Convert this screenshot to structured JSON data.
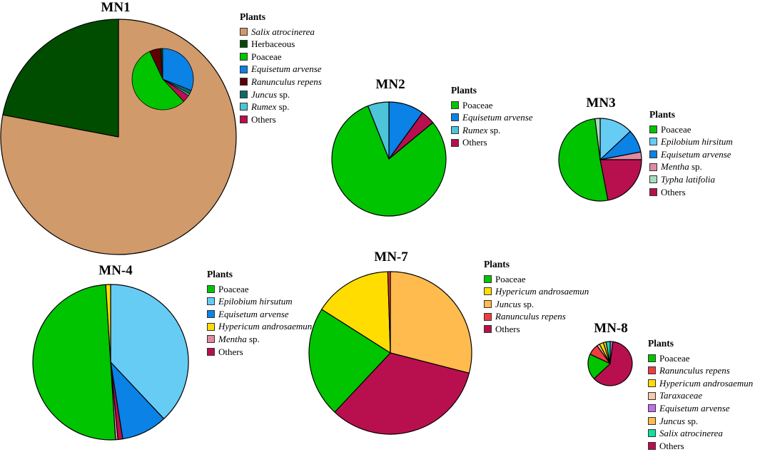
{
  "colors": {
    "Salix atrocinerea": "#d19a6a",
    "Herbaceous": "#004d00",
    "Poaceae": "#00c400",
    "Equisetum arvense": "#0a82e6",
    "Ranunculus repens": "#5c0000",
    "Juncus sp.": "#0f6a66",
    "Rumex sp.": "#4dc4d8",
    "Others": "#b8104e",
    "Epilobium hirsitum": "#66ccf4",
    "Epilobium hirsutum": "#66ccf4",
    "Mentha sp.": "#e08aa2",
    "Typha latifolia": "#a8dcc0",
    "Hypericum androsaemun": "#ffdd00",
    "Juncus sp. (MN-7)": "#ffbb4d",
    "Ranunculus repens (MN-7)": "#f03c40",
    "Taraxaceae": "#f8c8a8",
    "Equisetum arvense (MN-8)": "#c070e8",
    "Salix atrocinerea (MN-8)": "#10e0a0"
  },
  "chart_data": [
    {
      "type": "pie",
      "title": "MN1",
      "legend_title": "Plants",
      "legend_placement": "right",
      "slices": [
        {
          "label": "Salix atrocinerea",
          "italic": true,
          "value": 78,
          "color_key": "Salix atrocinerea"
        },
        {
          "label": "Herbaceous",
          "italic": false,
          "value": 22,
          "color_key": "Herbaceous"
        }
      ],
      "inset": {
        "breakdown_of": "Herbaceous",
        "slices": [
          {
            "label": "Equisetum arvense",
            "value": 31,
            "color_key": "Equisetum arvense"
          },
          {
            "label": "Juncus sp.",
            "value": 2,
            "color_key": "Juncus sp."
          },
          {
            "label": "Rumex sp.",
            "value": 1,
            "color_key": "Rumex sp."
          },
          {
            "label": "Others",
            "value": 4,
            "color_key": "Others"
          },
          {
            "label": "Poaceae",
            "value": 55,
            "color_key": "Poaceae"
          },
          {
            "label": "Ranunculus repens",
            "value": 6,
            "color_key": "Ranunculus repens"
          },
          {
            "label": "Herbaceous",
            "value": 1,
            "color_key": "Herbaceous"
          }
        ]
      },
      "legend": [
        {
          "label": "Salix atrocinerea",
          "italic": true,
          "suffix": "",
          "color_key": "Salix atrocinerea"
        },
        {
          "label": "Herbaceous",
          "italic": false,
          "suffix": "",
          "color_key": "Herbaceous"
        },
        {
          "label": "Poaceae",
          "italic": false,
          "suffix": "",
          "color_key": "Poaceae"
        },
        {
          "label": "Equisetum arvense",
          "italic": true,
          "suffix": "",
          "color_key": "Equisetum arvense"
        },
        {
          "label": "Ranunculus repens",
          "italic": true,
          "suffix": "",
          "color_key": "Ranunculus repens"
        },
        {
          "label": "Juncus",
          "italic": true,
          "suffix": " sp.",
          "color_key": "Juncus sp."
        },
        {
          "label": "Rumex",
          "italic": true,
          "suffix": " sp.",
          "color_key": "Rumex sp."
        },
        {
          "label": "Others",
          "italic": false,
          "suffix": "",
          "color_key": "Others"
        }
      ]
    },
    {
      "type": "pie",
      "title": "MN2",
      "legend_title": "Plants",
      "legend_placement": "right",
      "slices": [
        {
          "label": "Equisetum arvense",
          "value": 10,
          "color_key": "Equisetum arvense"
        },
        {
          "label": "Others",
          "value": 4,
          "color_key": "Others"
        },
        {
          "label": "Poaceae",
          "value": 80,
          "color_key": "Poaceae"
        },
        {
          "label": "Rumex sp.",
          "value": 6,
          "color_key": "Rumex sp."
        }
      ],
      "legend": [
        {
          "label": "Poaceae",
          "italic": false,
          "suffix": "",
          "color_key": "Poaceae"
        },
        {
          "label": "Equisetum arvense",
          "italic": true,
          "suffix": "",
          "color_key": "Equisetum arvense"
        },
        {
          "label": "Rumex",
          "italic": true,
          "suffix": " sp.",
          "color_key": "Rumex sp."
        },
        {
          "label": "Others",
          "italic": false,
          "suffix": "",
          "color_key": "Others"
        }
      ]
    },
    {
      "type": "pie",
      "title": "MN3",
      "legend_title": "Plants",
      "legend_placement": "right",
      "slices": [
        {
          "label": "Epilobium hirsitum",
          "value": 13,
          "color_key": "Epilobium hirsitum"
        },
        {
          "label": "Equisetum arvense",
          "value": 9,
          "color_key": "Equisetum arvense"
        },
        {
          "label": "Mentha sp.",
          "value": 3,
          "color_key": "Mentha sp."
        },
        {
          "label": "Others",
          "value": 22,
          "color_key": "Others"
        },
        {
          "label": "Poaceae",
          "value": 51,
          "color_key": "Poaceae"
        },
        {
          "label": "Typha latifolia",
          "value": 2,
          "color_key": "Typha latifolia"
        }
      ],
      "legend": [
        {
          "label": "Poaceae",
          "italic": false,
          "suffix": "",
          "color_key": "Poaceae"
        },
        {
          "label": "Epilobium hirsitum",
          "italic": true,
          "suffix": "",
          "color_key": "Epilobium hirsitum"
        },
        {
          "label": "Equisetum arvense",
          "italic": true,
          "suffix": "",
          "color_key": "Equisetum arvense"
        },
        {
          "label": "Mentha",
          "italic": true,
          "suffix": " sp.",
          "color_key": "Mentha sp."
        },
        {
          "label": "Typha latifolia",
          "italic": true,
          "suffix": "",
          "color_key": "Typha latifolia"
        },
        {
          "label": "Others",
          "italic": false,
          "suffix": "",
          "color_key": "Others"
        }
      ]
    },
    {
      "type": "pie",
      "title": "MN-4",
      "legend_title": "Plants",
      "legend_placement": "right",
      "slices": [
        {
          "label": "Epilobium hirsutum",
          "value": 38,
          "color_key": "Epilobium hirsutum"
        },
        {
          "label": "Equisetum arvense",
          "value": 9.5,
          "color_key": "Equisetum arvense"
        },
        {
          "label": "Others",
          "value": 1,
          "color_key": "Others"
        },
        {
          "label": "Mentha sp.",
          "value": 0.5,
          "color_key": "Mentha sp."
        },
        {
          "label": "Poaceae",
          "value": 50,
          "color_key": "Poaceae"
        },
        {
          "label": "Hypericum androsaemun",
          "value": 1,
          "color_key": "Hypericum androsaemun"
        }
      ],
      "legend": [
        {
          "label": "Poaceae",
          "italic": false,
          "suffix": "",
          "color_key": "Poaceae"
        },
        {
          "label": "Epilobium hirsutum",
          "italic": true,
          "suffix": "",
          "color_key": "Epilobium hirsutum"
        },
        {
          "label": "Equisetum arvense",
          "italic": true,
          "suffix": "",
          "color_key": "Equisetum arvense"
        },
        {
          "label": "Hypericum androsaemun",
          "italic": true,
          "suffix": "",
          "color_key": "Hypericum androsaemun"
        },
        {
          "label": "Mentha",
          "italic": true,
          "suffix": " sp.",
          "color_key": "Mentha sp."
        },
        {
          "label": "Others",
          "italic": false,
          "suffix": "",
          "color_key": "Others"
        }
      ]
    },
    {
      "type": "pie",
      "title": "MN-7",
      "legend_title": "Plants",
      "legend_placement": "right",
      "slices": [
        {
          "label": "Juncus sp.",
          "value": 29,
          "color_key": "Juncus sp. (MN-7)"
        },
        {
          "label": "Others",
          "value": 33,
          "color_key": "Others"
        },
        {
          "label": "Poaceae",
          "value": 22,
          "color_key": "Poaceae"
        },
        {
          "label": "Hypericum androsaemun",
          "value": 15.5,
          "color_key": "Hypericum androsaemun"
        },
        {
          "label": "Ranunculus repens",
          "value": 0.5,
          "color_key": "Ranunculus repens (MN-7)"
        }
      ],
      "legend": [
        {
          "label": "Poaceae",
          "italic": false,
          "suffix": "",
          "color_key": "Poaceae"
        },
        {
          "label": "Hypericum androsaemun",
          "italic": true,
          "suffix": "",
          "color_key": "Hypericum androsaemun"
        },
        {
          "label": "Juncus",
          "italic": true,
          "suffix": " sp.",
          "color_key": "Juncus sp. (MN-7)"
        },
        {
          "label": "Ranunculus repens",
          "italic": true,
          "suffix": "",
          "color_key": "Ranunculus repens (MN-7)"
        },
        {
          "label": "Others",
          "italic": false,
          "suffix": "",
          "color_key": "Others"
        }
      ]
    },
    {
      "type": "pie",
      "title": "MN-8",
      "legend_title": "Plants",
      "legend_placement": "right",
      "slices": [
        {
          "label": "Equisetum arvense",
          "value": 2,
          "color_key": "Equisetum arvense (MN-8)"
        },
        {
          "label": "Others",
          "value": 61,
          "color_key": "Others"
        },
        {
          "label": "Poaceae",
          "value": 19,
          "color_key": "Poaceae"
        },
        {
          "label": "Ranunculus repens",
          "value": 8,
          "color_key": "Ranunculus repens (MN-7)"
        },
        {
          "label": "Taraxaceae",
          "value": 2,
          "color_key": "Taraxaceae"
        },
        {
          "label": "Hypericum androsaemun",
          "value": 3,
          "color_key": "Hypericum androsaemun"
        },
        {
          "label": "Juncus sp.",
          "value": 2,
          "color_key": "Juncus sp. (MN-7)"
        },
        {
          "label": "Salix atrocinerea",
          "value": 3,
          "color_key": "Salix atrocinerea (MN-8)"
        }
      ],
      "legend": [
        {
          "label": "Poaceae",
          "italic": false,
          "suffix": "",
          "color_key": "Poaceae"
        },
        {
          "label": "Ranunculus repens",
          "italic": true,
          "suffix": "",
          "color_key": "Ranunculus repens (MN-7)"
        },
        {
          "label": "Hypericum androsaemun",
          "italic": true,
          "suffix": "",
          "color_key": "Hypericum androsaemun"
        },
        {
          "label": "Taraxaceae",
          "italic": true,
          "suffix": "",
          "color_key": "Taraxaceae"
        },
        {
          "label": "Equisetum arvense",
          "italic": true,
          "suffix": "",
          "color_key": "Equisetum arvense (MN-8)"
        },
        {
          "label": "Juncus",
          "italic": true,
          "suffix": " sp.",
          "color_key": "Juncus sp. (MN-7)"
        },
        {
          "label": "Salix atrocinerea",
          "italic": true,
          "suffix": "",
          "color_key": "Salix atrocinerea (MN-8)"
        },
        {
          "label": "Others",
          "italic": false,
          "suffix": "",
          "color_key": "Others"
        }
      ]
    }
  ]
}
